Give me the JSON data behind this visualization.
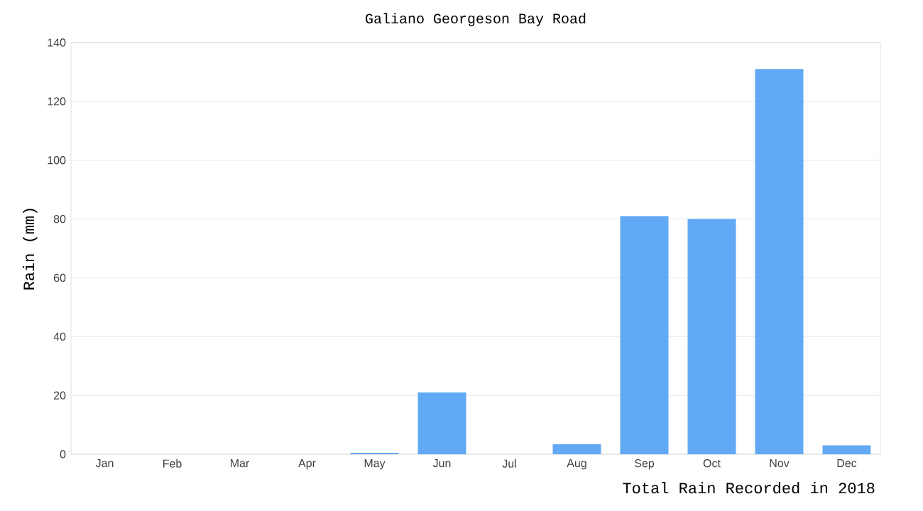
{
  "chart_data": {
    "type": "bar",
    "title": "Galiano Georgeson Bay Road",
    "xlabel": "Total Rain Recorded in 2018",
    "ylabel": "Rain (mm)",
    "categories": [
      "Jan",
      "Feb",
      "Mar",
      "Apr",
      "May",
      "Jun",
      "Jul",
      "Aug",
      "Sep",
      "Oct",
      "Nov",
      "Dec"
    ],
    "values": [
      0,
      0,
      0,
      0,
      0.5,
      21,
      0,
      3.4,
      81,
      80,
      131,
      3
    ],
    "color": "#62a9f5",
    "ylim": [
      0,
      140
    ],
    "yticks": [
      0,
      20,
      40,
      60,
      80,
      100,
      120,
      140
    ],
    "grid": "y"
  }
}
